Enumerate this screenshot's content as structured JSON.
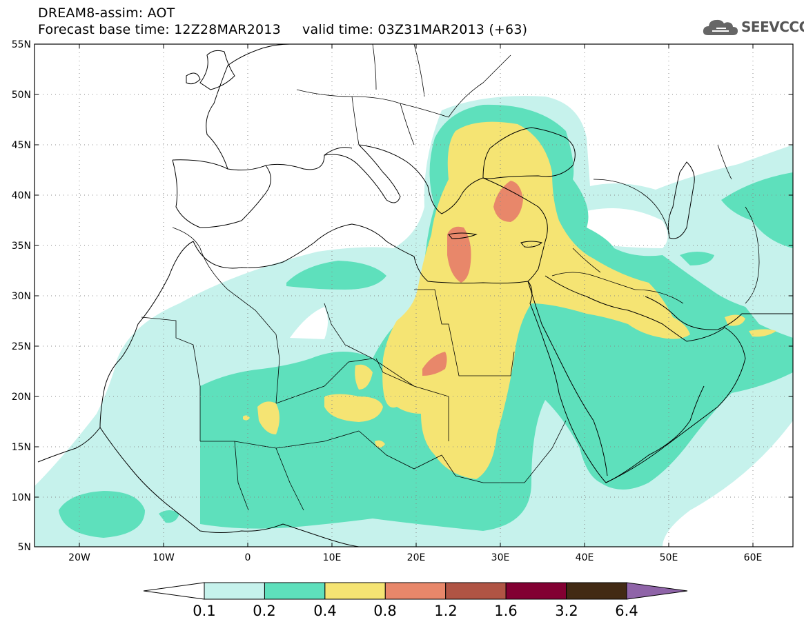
{
  "header": {
    "title_line1": "DREAM8-assim: AOT",
    "title_line2": "Forecast base time: 12Z28MAR2013     valid time: 03Z31MAR2013 (+63)",
    "logo_text": "SEEVCCC"
  },
  "map": {
    "lat_labels": [
      "55N",
      "50N",
      "45N",
      "40N",
      "35N",
      "30N",
      "25N",
      "20N",
      "15N",
      "10N",
      "5N"
    ],
    "lon_labels": [
      "20W",
      "10W",
      "0",
      "10E",
      "20E",
      "30E",
      "40E",
      "50E",
      "60E"
    ]
  },
  "colorbar": {
    "labels": [
      "0.1",
      "0.2",
      "0.4",
      "0.8",
      "1.2",
      "1.6",
      "3.2",
      "6.4"
    ],
    "colors": [
      "#c6f2ec",
      "#5ee0bc",
      "#f5e473",
      "#e8876a",
      "#b05444",
      "#820032",
      "#422a14",
      "#8f64a8"
    ]
  },
  "palette": {
    "c01": "#c6f2ec",
    "c02": "#5ee0bc",
    "c04": "#f5e473",
    "c08": "#e8876a"
  }
}
